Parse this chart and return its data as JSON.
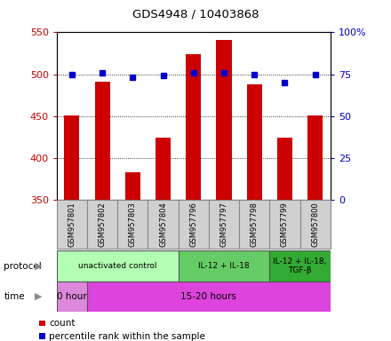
{
  "title": "GDS4948 / 10403868",
  "samples": [
    "GSM957801",
    "GSM957802",
    "GSM957803",
    "GSM957804",
    "GSM957796",
    "GSM957797",
    "GSM957798",
    "GSM957799",
    "GSM957800"
  ],
  "counts": [
    451,
    491,
    383,
    424,
    524,
    541,
    488,
    424,
    451
  ],
  "percentile_ranks": [
    75,
    76,
    73,
    74,
    76,
    76,
    75,
    70,
    75
  ],
  "ylim_left": [
    350,
    550
  ],
  "ylim_right": [
    0,
    100
  ],
  "yticks_left": [
    350,
    400,
    450,
    500,
    550
  ],
  "yticks_right": [
    0,
    25,
    50,
    75,
    100
  ],
  "ytick_right_labels": [
    "0",
    "25",
    "50",
    "75",
    "100%"
  ],
  "bar_color": "#cc0000",
  "dot_color": "#0000cc",
  "grid_color": "#000000",
  "protocol_groups": [
    {
      "label": "unactivated control",
      "start": 0,
      "end": 4,
      "color": "#b3ffb3"
    },
    {
      "label": "IL-12 + IL-18",
      "start": 4,
      "end": 7,
      "color": "#66cc66"
    },
    {
      "label": "IL-12 + IL-18,\nTGF-β",
      "start": 7,
      "end": 9,
      "color": "#33aa33"
    }
  ],
  "time_groups": [
    {
      "label": "0 hour",
      "start": 0,
      "end": 1,
      "color": "#dd88dd"
    },
    {
      "label": "15-20 hours",
      "start": 1,
      "end": 9,
      "color": "#dd44dd"
    }
  ],
  "legend_items": [
    {
      "color": "#cc0000",
      "label": "count"
    },
    {
      "color": "#0000cc",
      "label": "percentile rank within the sample"
    }
  ],
  "bg_color": "#ffffff",
  "label_color_left": "#cc0000",
  "label_color_right": "#0000cc",
  "sample_box_color": "#d0d0d0",
  "sample_box_edge": "#888888"
}
